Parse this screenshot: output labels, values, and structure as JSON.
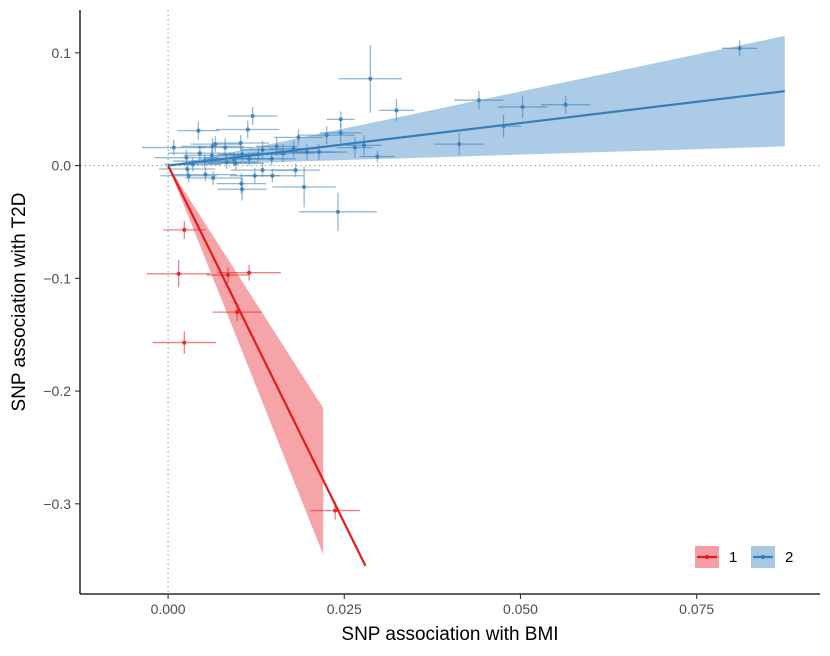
{
  "chart_data": {
    "type": "scatter",
    "xlabel": "SNP association with BMI",
    "ylabel": "SNP association with T2D",
    "xlim": [
      -0.0125,
      0.0925
    ],
    "ylim": [
      -0.38,
      0.138
    ],
    "x_ticks": [
      0.0,
      0.025,
      0.05,
      0.075
    ],
    "x_tick_labels": [
      "0.000",
      "0.025",
      "0.050",
      "0.075"
    ],
    "y_ticks": [
      0.1,
      0.0,
      -0.1,
      -0.2,
      -0.3
    ],
    "y_tick_labels": [
      "0.1",
      "0.0",
      "−0.1",
      "−0.2",
      "−0.3"
    ],
    "reference_lines": {
      "x": 0,
      "y": 0,
      "style": "dotted"
    },
    "legend": {
      "position": "bottom-right",
      "entries": [
        "1",
        "2"
      ]
    },
    "series": [
      {
        "name": "1",
        "color": "#E41A1C",
        "band_color": "#F4A0A3",
        "fit": {
          "x": [
            0.0,
            0.028
          ],
          "y": [
            0.0,
            -0.355
          ]
        },
        "band": {
          "x": [
            0.0,
            0.022
          ],
          "upper": [
            0.0,
            -0.215
          ],
          "lower": [
            0.0,
            -0.345
          ]
        },
        "points": [
          {
            "x": 0.0023,
            "y": -0.057,
            "xerr": 0.003,
            "yerr": 0.008
          },
          {
            "x": 0.0015,
            "y": -0.096,
            "xerr": 0.0045,
            "yerr": 0.012
          },
          {
            "x": 0.0085,
            "y": -0.097,
            "xerr": 0.003,
            "yerr": 0.007
          },
          {
            "x": 0.0115,
            "y": -0.095,
            "xerr": 0.0045,
            "yerr": 0.007
          },
          {
            "x": 0.0098,
            "y": -0.13,
            "xerr": 0.0035,
            "yerr": 0.008
          },
          {
            "x": 0.0023,
            "y": -0.157,
            "xerr": 0.0045,
            "yerr": 0.01
          },
          {
            "x": 0.0237,
            "y": -0.306,
            "xerr": 0.0035,
            "yerr": 0.008
          }
        ]
      },
      {
        "name": "2",
        "color": "#377EB8",
        "band_color": "#A8C8E6",
        "fit": {
          "x": [
            0.0,
            0.0875
          ],
          "y": [
            0.0,
            0.066
          ]
        },
        "band": {
          "x": [
            0.0,
            0.0875
          ],
          "upper": [
            0.0,
            0.115
          ],
          "lower": [
            0.0,
            0.017
          ]
        },
        "points": [
          {
            "x": 0.0811,
            "y": 0.104,
            "xerr": 0.0025,
            "yerr": 0.007
          },
          {
            "x": 0.0287,
            "y": 0.077,
            "xerr": 0.0045,
            "yerr": 0.03
          },
          {
            "x": 0.0441,
            "y": 0.058,
            "xerr": 0.0035,
            "yerr": 0.008
          },
          {
            "x": 0.0564,
            "y": 0.054,
            "xerr": 0.0035,
            "yerr": 0.008
          },
          {
            "x": 0.0503,
            "y": 0.052,
            "xerr": 0.0035,
            "yerr": 0.01
          },
          {
            "x": 0.0476,
            "y": 0.035,
            "xerr": 0.0025,
            "yerr": 0.01
          },
          {
            "x": 0.0413,
            "y": 0.019,
            "xerr": 0.0035,
            "yerr": 0.01
          },
          {
            "x": 0.0324,
            "y": 0.049,
            "xerr": 0.0025,
            "yerr": 0.01
          },
          {
            "x": 0.0245,
            "y": 0.041,
            "xerr": 0.002,
            "yerr": 0.007
          },
          {
            "x": 0.0245,
            "y": 0.029,
            "xerr": 0.003,
            "yerr": 0.009
          },
          {
            "x": 0.0225,
            "y": 0.027,
            "xerr": 0.004,
            "yerr": 0.008
          },
          {
            "x": 0.0185,
            "y": 0.025,
            "xerr": 0.0035,
            "yerr": 0.007
          },
          {
            "x": 0.0265,
            "y": 0.016,
            "xerr": 0.0025,
            "yerr": 0.009
          },
          {
            "x": 0.0278,
            "y": 0.018,
            "xerr": 0.0025,
            "yerr": 0.009
          },
          {
            "x": 0.0297,
            "y": 0.008,
            "xerr": 0.0025,
            "yerr": 0.005
          },
          {
            "x": 0.0241,
            "y": -0.041,
            "xerr": 0.0055,
            "yerr": 0.017
          },
          {
            "x": 0.0193,
            "y": -0.019,
            "xerr": 0.0045,
            "yerr": 0.018
          },
          {
            "x": 0.012,
            "y": 0.044,
            "xerr": 0.0035,
            "yerr": 0.008
          },
          {
            "x": 0.0113,
            "y": 0.032,
            "xerr": 0.0045,
            "yerr": 0.008
          },
          {
            "x": 0.0103,
            "y": 0.02,
            "xerr": 0.004,
            "yerr": 0.007
          },
          {
            "x": 0.0081,
            "y": 0.016,
            "xerr": 0.004,
            "yerr": 0.008
          },
          {
            "x": 0.0043,
            "y": 0.031,
            "xerr": 0.003,
            "yerr": 0.008
          },
          {
            "x": 0.0067,
            "y": 0.019,
            "xerr": 0.0035,
            "yerr": 0.007
          },
          {
            "x": 0.0063,
            "y": 0.017,
            "xerr": 0.0045,
            "yerr": 0.007
          },
          {
            "x": 0.0045,
            "y": 0.011,
            "xerr": 0.0045,
            "yerr": 0.007
          },
          {
            "x": 0.0026,
            "y": 0.007,
            "xerr": 0.0045,
            "yerr": 0.007
          },
          {
            "x": 0.0008,
            "y": 0.016,
            "xerr": 0.0045,
            "yerr": 0.007
          },
          {
            "x": 0.0105,
            "y": 0.01,
            "xerr": 0.0035,
            "yerr": 0.006
          },
          {
            "x": 0.0115,
            "y": 0.006,
            "xerr": 0.0035,
            "yerr": 0.006
          },
          {
            "x": 0.0134,
            "y": 0.014,
            "xerr": 0.003,
            "yerr": 0.008
          },
          {
            "x": 0.0154,
            "y": 0.017,
            "xerr": 0.003,
            "yerr": 0.008
          },
          {
            "x": 0.0163,
            "y": 0.011,
            "xerr": 0.0045,
            "yerr": 0.008
          },
          {
            "x": 0.0178,
            "y": 0.015,
            "xerr": 0.0035,
            "yerr": 0.007
          },
          {
            "x": 0.0147,
            "y": 0.006,
            "xerr": 0.0035,
            "yerr": 0.006
          },
          {
            "x": 0.0096,
            "y": 0.002,
            "xerr": 0.004,
            "yerr": 0.006
          },
          {
            "x": 0.0134,
            "y": -0.004,
            "xerr": 0.0045,
            "yerr": 0.006
          },
          {
            "x": 0.0181,
            "y": -0.004,
            "xerr": 0.0035,
            "yerr": 0.006
          },
          {
            "x": 0.0123,
            "y": -0.009,
            "xerr": 0.0035,
            "yerr": 0.007
          },
          {
            "x": 0.0148,
            "y": -0.009,
            "xerr": 0.0045,
            "yerr": 0.006
          },
          {
            "x": 0.0053,
            "y": -0.008,
            "xerr": 0.0045,
            "yerr": 0.006
          },
          {
            "x": 0.0064,
            "y": -0.011,
            "xerr": 0.004,
            "yerr": 0.006
          },
          {
            "x": 0.0027,
            "y": -0.003,
            "xerr": 0.004,
            "yerr": 0.006
          },
          {
            "x": 0.0029,
            "y": -0.009,
            "xerr": 0.004,
            "yerr": 0.006
          },
          {
            "x": 0.0105,
            "y": -0.021,
            "xerr": 0.0035,
            "yerr": 0.01
          },
          {
            "x": 0.0104,
            "y": -0.016,
            "xerr": 0.0035,
            "yerr": 0.009
          },
          {
            "x": 0.0052,
            "y": 0.004,
            "xerr": 0.0045,
            "yerr": 0.006
          },
          {
            "x": 0.0035,
            "y": 0.001,
            "xerr": 0.004,
            "yerr": 0.006
          },
          {
            "x": 0.0083,
            "y": 0.003,
            "xerr": 0.0045,
            "yerr": 0.006
          },
          {
            "x": 0.0197,
            "y": 0.012,
            "xerr": 0.004,
            "yerr": 0.007
          },
          {
            "x": 0.0062,
            "y": 0.009,
            "xerr": 0.004,
            "yerr": 0.006
          },
          {
            "x": 0.0093,
            "y": 0.006,
            "xerr": 0.004,
            "yerr": 0.006
          },
          {
            "x": 0.0128,
            "y": 0.01,
            "xerr": 0.004,
            "yerr": 0.006
          },
          {
            "x": 0.0214,
            "y": 0.012,
            "xerr": 0.004,
            "yerr": 0.007
          }
        ]
      }
    ]
  }
}
